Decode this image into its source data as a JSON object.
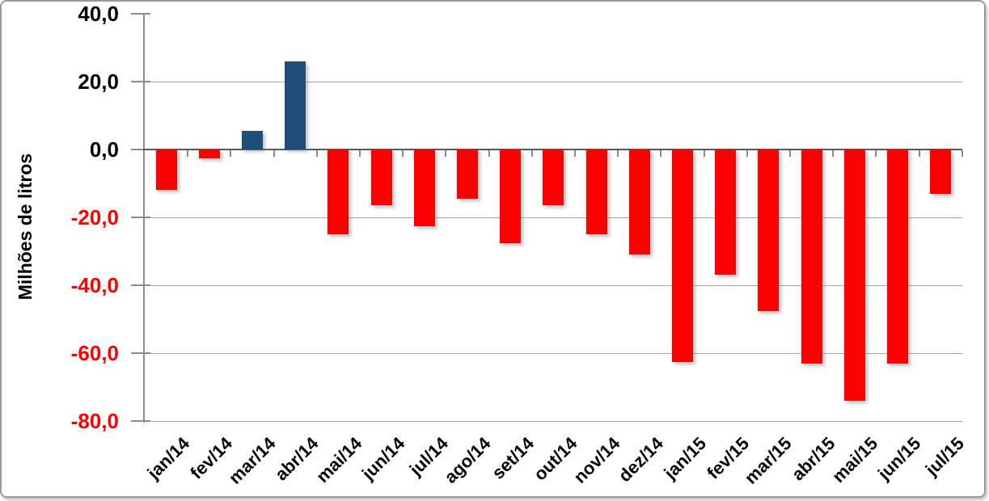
{
  "chart_data": {
    "type": "bar",
    "ylabel": "Milhões de litros",
    "xlabel": "",
    "categories": [
      "jan/14",
      "fev/14",
      "mar/14",
      "abr/14",
      "mai/14",
      "jun/14",
      "jul/14",
      "ago/14",
      "set/14",
      "out/14",
      "nov/14",
      "dez/14",
      "jan/15",
      "fev/15",
      "mar/15",
      "abr/15",
      "mai/15",
      "jun/15",
      "jul/15"
    ],
    "values": [
      -12.0,
      -2.5,
      5.5,
      26.0,
      -25.0,
      -16.5,
      -22.5,
      -14.5,
      -27.5,
      -16.5,
      -25.0,
      -31.0,
      -62.5,
      -37.0,
      -47.5,
      -63.0,
      -74.0,
      -63.0,
      -13.0
    ],
    "ylim": [
      -80,
      40
    ],
    "ytick_step": 20,
    "yticks": [
      {
        "value": 40,
        "label": "40,0",
        "label_color": "#000000"
      },
      {
        "value": 20,
        "label": "20,0",
        "label_color": "#000000"
      },
      {
        "value": 0,
        "label": "0,0",
        "label_color": "#000000"
      },
      {
        "value": -20,
        "label": "-20,0",
        "label_color": "#FF0000"
      },
      {
        "value": -40,
        "label": "-40,0",
        "label_color": "#FF0000"
      },
      {
        "value": -60,
        "label": "-60,0",
        "label_color": "#FF0000"
      },
      {
        "value": -80,
        "label": "-80,0",
        "label_color": "#FF0000"
      }
    ],
    "bar_colors": {
      "positive": "#1F4E79",
      "negative": "#FF0000"
    },
    "grid": true,
    "legend": "none"
  }
}
